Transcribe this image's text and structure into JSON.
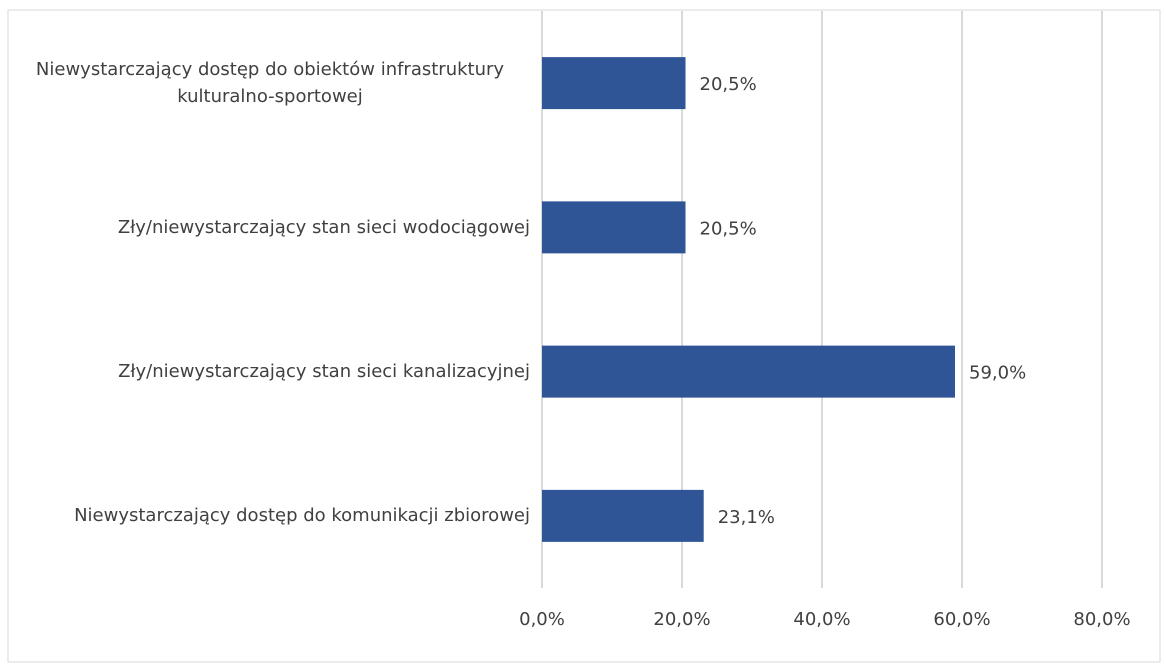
{
  "chart_data": {
    "type": "bar",
    "orientation": "horizontal",
    "categories": [
      "Niewystarczający dostęp do obiektów infrastruktury kulturalno-sportowej",
      "Zły/niewystarczający stan sieci wodociągowej",
      "Zły/niewystarczający stan sieci kanalizacyjnej",
      "Niewystarczający dostęp do komunikacji zbiorowej"
    ],
    "values": [
      20.5,
      20.5,
      59.0,
      23.1
    ],
    "value_labels": [
      "20,5%",
      "20,5%",
      "59,0%",
      "23,1%"
    ],
    "color": "#2f5597",
    "xlim": [
      0,
      80
    ],
    "xticks": [
      {
        "value": 0,
        "label": "0,0%"
      },
      {
        "value": 20,
        "label": "20,0%"
      },
      {
        "value": 40,
        "label": "40,0%"
      },
      {
        "value": 60,
        "label": "60,0%"
      },
      {
        "value": 80,
        "label": "80,0%"
      }
    ],
    "grid": true
  }
}
